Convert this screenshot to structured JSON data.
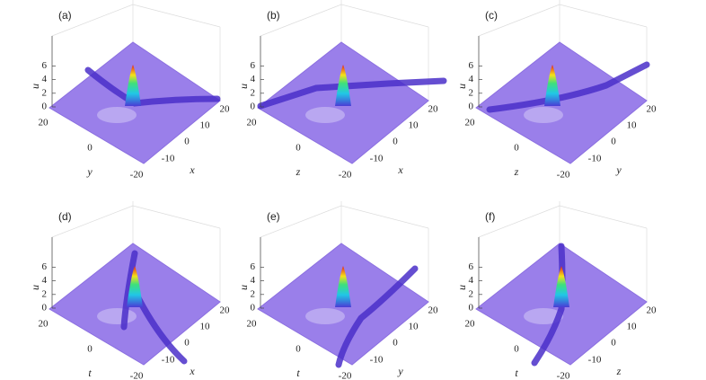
{
  "figure": {
    "panels": [
      {
        "label": "(a)",
        "zlabel": "u",
        "zticks": [
          0,
          2,
          4,
          6
        ],
        "left_label": "y",
        "left_ticks": [
          20,
          0
        ],
        "right_label": "x",
        "right_ticks": [
          -20,
          -10,
          0,
          10,
          20
        ]
      },
      {
        "label": "(b)",
        "zlabel": "u",
        "zticks": [
          0,
          2,
          4,
          6
        ],
        "left_label": "z",
        "left_ticks": [
          20,
          0
        ],
        "right_label": "x",
        "right_ticks": [
          -20,
          -10,
          0,
          10,
          20
        ]
      },
      {
        "label": "(c)",
        "zlabel": "u",
        "zticks": [
          0,
          2,
          4,
          6
        ],
        "left_label": "z",
        "left_ticks": [
          20,
          0
        ],
        "right_label": "y",
        "right_ticks": [
          -20,
          -10,
          0,
          10,
          20
        ]
      },
      {
        "label": "(d)",
        "zlabel": "u",
        "zticks": [
          0,
          2,
          4,
          6
        ],
        "left_label": "t",
        "left_ticks": [
          20,
          0
        ],
        "right_label": "x",
        "right_ticks": [
          -20,
          -10,
          0,
          10,
          20
        ]
      },
      {
        "label": "(e)",
        "zlabel": "u",
        "zticks": [
          0,
          2,
          4,
          6
        ],
        "left_label": "t",
        "left_ticks": [
          20,
          0
        ],
        "right_label": "y",
        "right_ticks": [
          -20,
          -10,
          0,
          10,
          20
        ]
      },
      {
        "label": "(f)",
        "zlabel": "u",
        "zticks": [
          0,
          2,
          4,
          6
        ],
        "left_label": "t",
        "left_ticks": [
          20,
          0
        ],
        "right_label": "z",
        "right_ticks": [
          -20,
          -10,
          0,
          10,
          20
        ]
      }
    ]
  }
}
